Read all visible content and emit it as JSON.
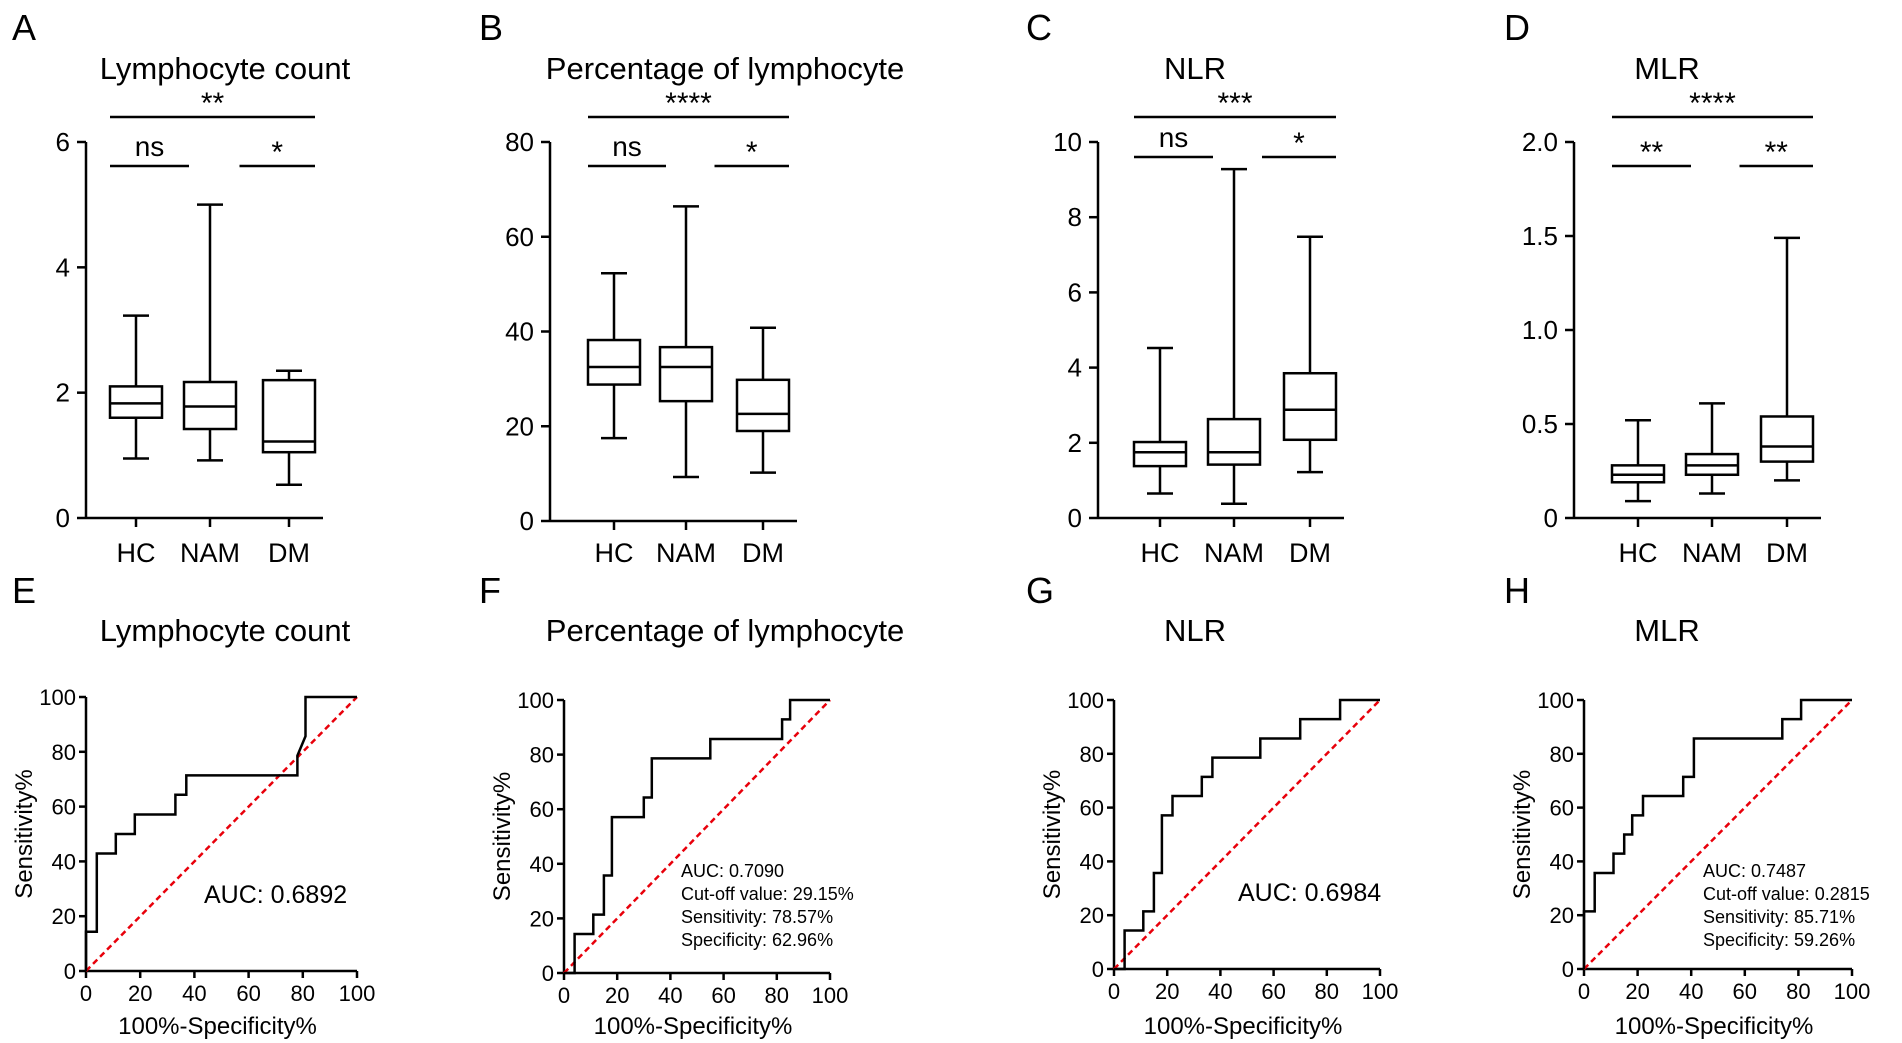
{
  "figure": {
    "description_free": true
  },
  "chart_data": [
    {
      "panel": "A",
      "type": "box",
      "title": "Lymphocyte count",
      "categories": [
        "HC",
        "NAM",
        "DM"
      ],
      "ylim": [
        0,
        6
      ],
      "yticks": [
        0,
        2,
        4,
        6
      ],
      "ytick_labels": [
        "0",
        "2",
        "4",
        "6"
      ],
      "boxes": [
        {
          "min": 0.95,
          "q1": 1.6,
          "median": 1.83,
          "q3": 2.1,
          "max": 3.23
        },
        {
          "min": 0.92,
          "q1": 1.42,
          "median": 1.78,
          "q3": 2.17,
          "max": 5.0
        },
        {
          "min": 0.53,
          "q1": 1.05,
          "median": 1.22,
          "q3": 2.2,
          "max": 2.35
        }
      ],
      "significance": [
        {
          "from": 0,
          "to": 2,
          "label": "**",
          "level": 2
        },
        {
          "from": 0,
          "to": 1,
          "label": "ns",
          "level": 1
        },
        {
          "from": 1,
          "to": 2,
          "label": "*",
          "level": 1
        }
      ]
    },
    {
      "panel": "B",
      "type": "box",
      "title": "Percentage of lymphocyte",
      "categories": [
        "HC",
        "NAM",
        "DM"
      ],
      "ylim": [
        0,
        80
      ],
      "yticks": [
        0,
        20,
        40,
        60,
        80
      ],
      "ytick_labels": [
        "0",
        "20",
        "40",
        "60",
        "80"
      ],
      "boxes": [
        {
          "min": 17.5,
          "q1": 28.8,
          "median": 32.5,
          "q3": 38.2,
          "max": 52.3
        },
        {
          "min": 9.3,
          "q1": 25.3,
          "median": 32.5,
          "q3": 36.7,
          "max": 66.4
        },
        {
          "min": 10.2,
          "q1": 19.0,
          "median": 22.6,
          "q3": 29.8,
          "max": 40.8
        }
      ],
      "significance": [
        {
          "from": 0,
          "to": 2,
          "label": "****",
          "level": 2
        },
        {
          "from": 0,
          "to": 1,
          "label": "ns",
          "level": 1
        },
        {
          "from": 1,
          "to": 2,
          "label": "*",
          "level": 1
        }
      ]
    },
    {
      "panel": "C",
      "type": "box",
      "title": "NLR",
      "categories": [
        "HC",
        "NAM",
        "DM"
      ],
      "ylim": [
        0,
        10
      ],
      "yticks": [
        0,
        2,
        4,
        6,
        8,
        10
      ],
      "ytick_labels": [
        "0",
        "2",
        "4",
        "6",
        "8",
        "10"
      ],
      "boxes": [
        {
          "min": 0.65,
          "q1": 1.38,
          "median": 1.75,
          "q3": 2.02,
          "max": 4.52
        },
        {
          "min": 0.38,
          "q1": 1.42,
          "median": 1.75,
          "q3": 2.63,
          "max": 9.28
        },
        {
          "min": 1.22,
          "q1": 2.08,
          "median": 2.88,
          "q3": 3.85,
          "max": 7.48
        }
      ],
      "significance": [
        {
          "from": 0,
          "to": 2,
          "label": "***",
          "level": 2
        },
        {
          "from": 0,
          "to": 1,
          "label": "ns",
          "level": 1
        },
        {
          "from": 1,
          "to": 2,
          "label": "*",
          "level": 1
        }
      ]
    },
    {
      "panel": "D",
      "type": "box",
      "title": "MLR",
      "categories": [
        "HC",
        "NAM",
        "DM"
      ],
      "ylim": [
        0,
        2.0
      ],
      "yticks": [
        0,
        0.5,
        1.0,
        1.5,
        2.0
      ],
      "ytick_labels": [
        "0",
        "0.5",
        "1.0",
        "1.5",
        "2.0"
      ],
      "boxes": [
        {
          "min": 0.09,
          "q1": 0.19,
          "median": 0.23,
          "q3": 0.28,
          "max": 0.52
        },
        {
          "min": 0.13,
          "q1": 0.23,
          "median": 0.28,
          "q3": 0.34,
          "max": 0.61
        },
        {
          "min": 0.2,
          "q1": 0.3,
          "median": 0.38,
          "q3": 0.54,
          "max": 1.49
        }
      ],
      "significance": [
        {
          "from": 0,
          "to": 2,
          "label": "****",
          "level": 2
        },
        {
          "from": 0,
          "to": 1,
          "label": "**",
          "level": 1
        },
        {
          "from": 1,
          "to": 2,
          "label": "**",
          "level": 1
        }
      ]
    },
    {
      "panel": "E",
      "type": "line",
      "title": "Lymphocyte count",
      "xlabel": "100%-Specificity%",
      "ylabel": "Sensitivity%",
      "xlim": [
        0,
        100
      ],
      "ylim": [
        0,
        100
      ],
      "ticks": [
        0,
        20,
        40,
        60,
        80,
        100
      ],
      "x": [
        0,
        0,
        4,
        4,
        11,
        11,
        18,
        18,
        33,
        33,
        37,
        37,
        78,
        78,
        81,
        81,
        100
      ],
      "y": [
        0,
        14.3,
        14.3,
        42.9,
        42.9,
        50,
        50,
        57.1,
        57.1,
        64.3,
        64.3,
        71.4,
        71.4,
        78.6,
        85.7,
        100,
        100
      ],
      "annotations": [
        "AUC: 0.6892"
      ]
    },
    {
      "panel": "F",
      "type": "line",
      "title": "Percentage of lymphocyte",
      "xlabel": "100%-Specificity%",
      "ylabel": "Sensitivity%",
      "xlim": [
        0,
        100
      ],
      "ylim": [
        0,
        100
      ],
      "ticks": [
        0,
        20,
        40,
        60,
        80,
        100
      ],
      "x": [
        0,
        4,
        4,
        11,
        11,
        15,
        15,
        18,
        18,
        30,
        30,
        33,
        33,
        55,
        55,
        82,
        82,
        85,
        85,
        100
      ],
      "y": [
        0,
        0,
        14.3,
        14.3,
        21.4,
        21.4,
        35.7,
        35.7,
        57.1,
        57.1,
        64.3,
        64.3,
        78.6,
        78.6,
        85.7,
        85.7,
        92.9,
        92.9,
        100,
        100
      ],
      "annotations": [
        "AUC: 0.7090",
        "Cut-off value: 29.15%",
        "Sensitivity: 78.57%",
        "Specificity: 62.96%"
      ]
    },
    {
      "panel": "G",
      "type": "line",
      "title": "NLR",
      "xlabel": "100%-Specificity%",
      "ylabel": "Sensitivity%",
      "xlim": [
        0,
        100
      ],
      "ylim": [
        0,
        100
      ],
      "ticks": [
        0,
        20,
        40,
        60,
        80,
        100
      ],
      "x": [
        0,
        4,
        4,
        11,
        11,
        15,
        15,
        18,
        18,
        22,
        22,
        33,
        33,
        37,
        37,
        55,
        55,
        70,
        70,
        85,
        85,
        100
      ],
      "y": [
        0,
        0,
        14.3,
        14.3,
        21.4,
        21.4,
        35.7,
        35.7,
        57.1,
        57.1,
        64.3,
        64.3,
        71.4,
        71.4,
        78.6,
        78.6,
        85.7,
        85.7,
        92.9,
        92.9,
        100,
        100
      ],
      "annotations": [
        "AUC: 0.6984"
      ]
    },
    {
      "panel": "H",
      "type": "line",
      "title": "MLR",
      "xlabel": "100%-Specificity%",
      "ylabel": "Sensitivity%",
      "xlim": [
        0,
        100
      ],
      "ylim": [
        0,
        100
      ],
      "ticks": [
        0,
        20,
        40,
        60,
        80,
        100
      ],
      "x": [
        0,
        0,
        4,
        4,
        11,
        11,
        15,
        15,
        18,
        18,
        22,
        22,
        37,
        37,
        41,
        41,
        74,
        74,
        81,
        81,
        100
      ],
      "y": [
        0,
        21.4,
        21.4,
        35.7,
        35.7,
        42.9,
        42.9,
        50,
        50,
        57.1,
        57.1,
        64.3,
        64.3,
        71.4,
        71.4,
        85.7,
        85.7,
        92.9,
        92.9,
        100,
        100
      ],
      "annotations": [
        "AUC: 0.7487",
        "Cut-off value: 0.2815",
        "Sensitivity: 85.71%",
        "Specificity: 59.26%"
      ]
    }
  ]
}
